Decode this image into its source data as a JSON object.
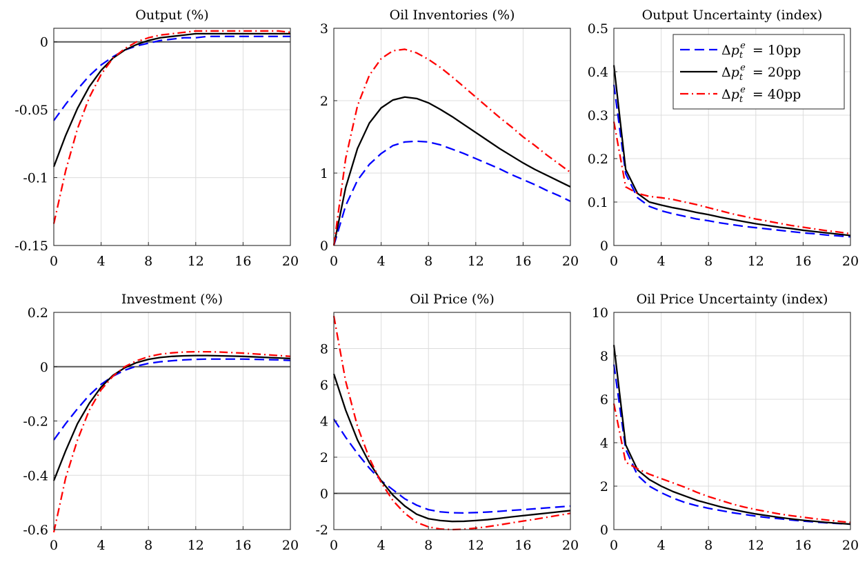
{
  "figure": {
    "legend": {
      "placement": "top-right",
      "panel_index": 2,
      "entries": [
        {
          "series": "10pp",
          "label": "Δp_t^e = 10pp"
        },
        {
          "series": "20pp",
          "label": "Δp_t^e = 20pp"
        },
        {
          "series": "40pp",
          "label": "Δp_t^e = 40pp"
        }
      ]
    },
    "series_styles": {
      "10pp": {
        "color": "#0000ff",
        "dash": "dashed"
      },
      "20pp": {
        "color": "#000000",
        "dash": "solid"
      },
      "40pp": {
        "color": "#ff0000",
        "dash": "dashdot"
      }
    },
    "zero_line_color": "#555555"
  },
  "chart_data": [
    {
      "type": "line",
      "title": "Output (%)",
      "xlim": [
        0,
        20
      ],
      "ylim": [
        -0.15,
        0.01
      ],
      "xticks": [
        0,
        4,
        8,
        12,
        16,
        20
      ],
      "yticks": [
        -0.15,
        -0.1,
        -0.05,
        0
      ],
      "ytick_labels": [
        "-0.15",
        "-0.1",
        "-0.05",
        "0"
      ],
      "zero_line": true,
      "grid": true,
      "x": [
        0,
        1,
        2,
        3,
        4,
        5,
        6,
        7,
        8,
        9,
        10,
        11,
        12,
        13,
        14,
        15,
        16,
        17,
        18,
        19,
        20
      ],
      "series": [
        {
          "key": "10pp",
          "values": [
            -0.058,
            -0.046,
            -0.035,
            -0.025,
            -0.017,
            -0.011,
            -0.006,
            -0.003,
            -0.001,
            0.001,
            0.002,
            0.003,
            0.003,
            0.004,
            0.004,
            0.004,
            0.004,
            0.004,
            0.004,
            0.004,
            0.004
          ]
        },
        {
          "key": "20pp",
          "values": [
            -0.092,
            -0.069,
            -0.049,
            -0.033,
            -0.021,
            -0.012,
            -0.006,
            -0.002,
            0.001,
            0.003,
            0.004,
            0.005,
            0.006,
            0.006,
            0.006,
            0.006,
            0.006,
            0.006,
            0.006,
            0.006,
            0.006
          ]
        },
        {
          "key": "40pp",
          "values": [
            -0.134,
            -0.095,
            -0.064,
            -0.041,
            -0.024,
            -0.012,
            -0.005,
            0.0,
            0.003,
            0.005,
            0.006,
            0.007,
            0.008,
            0.008,
            0.008,
            0.008,
            0.008,
            0.008,
            0.008,
            0.008,
            0.007
          ]
        }
      ]
    },
    {
      "type": "line",
      "title": "Oil Inventories (%)",
      "xlim": [
        0,
        20
      ],
      "ylim": [
        0,
        3
      ],
      "xticks": [
        0,
        4,
        8,
        12,
        16,
        20
      ],
      "yticks": [
        0,
        1,
        2,
        3
      ],
      "ytick_labels": [
        "0",
        "1",
        "2",
        "3"
      ],
      "zero_line": false,
      "grid": true,
      "x": [
        0,
        1,
        2,
        3,
        4,
        5,
        6,
        7,
        8,
        9,
        10,
        11,
        12,
        13,
        14,
        15,
        16,
        17,
        18,
        19,
        20
      ],
      "series": [
        {
          "key": "10pp",
          "values": [
            0,
            0.55,
            0.9,
            1.12,
            1.27,
            1.38,
            1.43,
            1.44,
            1.43,
            1.39,
            1.33,
            1.27,
            1.2,
            1.13,
            1.06,
            0.98,
            0.91,
            0.84,
            0.76,
            0.69,
            0.61
          ]
        },
        {
          "key": "20pp",
          "values": [
            0,
            0.8,
            1.34,
            1.69,
            1.9,
            2.01,
            2.05,
            2.03,
            1.97,
            1.88,
            1.78,
            1.67,
            1.56,
            1.45,
            1.34,
            1.24,
            1.14,
            1.05,
            0.97,
            0.89,
            0.81
          ]
        },
        {
          "key": "40pp",
          "values": [
            0,
            1.2,
            1.93,
            2.35,
            2.58,
            2.69,
            2.71,
            2.66,
            2.57,
            2.46,
            2.33,
            2.19,
            2.05,
            1.91,
            1.77,
            1.64,
            1.5,
            1.38,
            1.25,
            1.13,
            1.01
          ]
        }
      ]
    },
    {
      "type": "line",
      "title": "Output Uncertainty (index)",
      "xlim": [
        0,
        20
      ],
      "ylim": [
        0,
        0.5
      ],
      "xticks": [
        0,
        4,
        8,
        12,
        16,
        20
      ],
      "yticks": [
        0,
        0.1,
        0.2,
        0.3,
        0.4,
        0.5
      ],
      "ytick_labels": [
        "0",
        "0.1",
        "0.2",
        "0.3",
        "0.4",
        "0.5"
      ],
      "zero_line": false,
      "grid": true,
      "x": [
        0,
        1,
        2,
        3,
        4,
        5,
        6,
        7,
        8,
        9,
        10,
        11,
        12,
        13,
        14,
        15,
        16,
        17,
        18,
        19,
        20
      ],
      "series": [
        {
          "key": "10pp",
          "values": [
            0.37,
            0.165,
            0.11,
            0.09,
            0.08,
            0.073,
            0.067,
            0.061,
            0.057,
            0.052,
            0.048,
            0.044,
            0.041,
            0.038,
            0.035,
            0.032,
            0.029,
            0.027,
            0.024,
            0.022,
            0.02
          ]
        },
        {
          "key": "20pp",
          "values": [
            0.415,
            0.175,
            0.12,
            0.1,
            0.093,
            0.087,
            0.082,
            0.076,
            0.071,
            0.065,
            0.06,
            0.055,
            0.05,
            0.046,
            0.042,
            0.039,
            0.035,
            0.032,
            0.029,
            0.026,
            0.023
          ]
        },
        {
          "key": "40pp",
          "values": [
            0.285,
            0.135,
            0.12,
            0.113,
            0.11,
            0.106,
            0.1,
            0.094,
            0.087,
            0.08,
            0.073,
            0.067,
            0.061,
            0.056,
            0.051,
            0.046,
            0.042,
            0.038,
            0.034,
            0.031,
            0.027
          ]
        }
      ]
    },
    {
      "type": "line",
      "title": "Investment (%)",
      "xlim": [
        0,
        20
      ],
      "ylim": [
        -0.6,
        0.2
      ],
      "xticks": [
        0,
        4,
        8,
        12,
        16,
        20
      ],
      "yticks": [
        -0.6,
        -0.4,
        -0.2,
        0,
        0.2
      ],
      "ytick_labels": [
        "-0.6",
        "-0.4",
        "-0.2",
        "0",
        "0.2"
      ],
      "zero_line": true,
      "grid": true,
      "x": [
        0,
        1,
        2,
        3,
        4,
        5,
        6,
        7,
        8,
        9,
        10,
        11,
        12,
        13,
        14,
        15,
        16,
        17,
        18,
        19,
        20
      ],
      "series": [
        {
          "key": "10pp",
          "values": [
            -0.27,
            -0.21,
            -0.155,
            -0.105,
            -0.065,
            -0.035,
            -0.013,
            0.002,
            0.012,
            0.018,
            0.022,
            0.025,
            0.027,
            0.028,
            0.028,
            0.028,
            0.028,
            0.027,
            0.026,
            0.025,
            0.023
          ]
        },
        {
          "key": "20pp",
          "values": [
            -0.42,
            -0.31,
            -0.21,
            -0.135,
            -0.075,
            -0.032,
            -0.004,
            0.015,
            0.027,
            0.034,
            0.038,
            0.04,
            0.041,
            0.041,
            0.04,
            0.039,
            0.038,
            0.036,
            0.034,
            0.032,
            0.03
          ]
        },
        {
          "key": "40pp",
          "values": [
            -0.61,
            -0.41,
            -0.27,
            -0.16,
            -0.085,
            -0.035,
            0.0,
            0.022,
            0.037,
            0.046,
            0.051,
            0.054,
            0.055,
            0.055,
            0.054,
            0.052,
            0.05,
            0.047,
            0.044,
            0.041,
            0.038
          ]
        }
      ]
    },
    {
      "type": "line",
      "title": "Oil Price (%)",
      "xlim": [
        0,
        20
      ],
      "ylim": [
        -2,
        10
      ],
      "xticks": [
        0,
        4,
        8,
        12,
        16,
        20
      ],
      "yticks": [
        -2,
        0,
        2,
        4,
        6,
        8
      ],
      "ytick_labels": [
        "-2",
        "0",
        "2",
        "4",
        "6",
        "8"
      ],
      "zero_line": true,
      "grid": true,
      "x": [
        0,
        1,
        2,
        3,
        4,
        5,
        6,
        7,
        8,
        9,
        10,
        11,
        12,
        13,
        14,
        15,
        16,
        17,
        18,
        19,
        20
      ],
      "series": [
        {
          "key": "10pp",
          "values": [
            4.1,
            3.1,
            2.2,
            1.4,
            0.7,
            0.2,
            -0.3,
            -0.65,
            -0.9,
            -1.02,
            -1.07,
            -1.08,
            -1.06,
            -1.03,
            -0.99,
            -0.94,
            -0.9,
            -0.85,
            -0.8,
            -0.75,
            -0.7
          ]
        },
        {
          "key": "20pp",
          "values": [
            6.6,
            4.6,
            2.95,
            1.7,
            0.7,
            -0.1,
            -0.7,
            -1.15,
            -1.4,
            -1.5,
            -1.55,
            -1.54,
            -1.5,
            -1.45,
            -1.38,
            -1.3,
            -1.23,
            -1.16,
            -1.09,
            -1.02,
            -0.95
          ]
        },
        {
          "key": "40pp",
          "values": [
            9.8,
            6.2,
            3.7,
            1.95,
            0.6,
            -0.4,
            -1.1,
            -1.6,
            -1.85,
            -1.97,
            -2.0,
            -1.98,
            -1.92,
            -1.84,
            -1.74,
            -1.63,
            -1.53,
            -1.43,
            -1.32,
            -1.21,
            -1.1
          ]
        }
      ]
    },
    {
      "type": "line",
      "title": "Oil Price Uncertainty (index)",
      "xlim": [
        0,
        20
      ],
      "ylim": [
        0,
        10
      ],
      "xticks": [
        0,
        4,
        8,
        12,
        16,
        20
      ],
      "yticks": [
        0,
        2,
        4,
        6,
        8,
        10
      ],
      "ytick_labels": [
        "0",
        "2",
        "4",
        "6",
        "8",
        "10"
      ],
      "zero_line": false,
      "grid": true,
      "x": [
        0,
        1,
        2,
        3,
        4,
        5,
        6,
        7,
        8,
        9,
        10,
        11,
        12,
        13,
        14,
        15,
        16,
        17,
        18,
        19,
        20
      ],
      "series": [
        {
          "key": "10pp",
          "values": [
            7.6,
            3.7,
            2.5,
            2.0,
            1.7,
            1.45,
            1.25,
            1.1,
            0.98,
            0.88,
            0.78,
            0.7,
            0.62,
            0.55,
            0.5,
            0.44,
            0.39,
            0.35,
            0.31,
            0.28,
            0.25
          ]
        },
        {
          "key": "20pp",
          "values": [
            8.5,
            3.9,
            2.75,
            2.3,
            2.0,
            1.75,
            1.55,
            1.35,
            1.2,
            1.05,
            0.93,
            0.82,
            0.72,
            0.64,
            0.56,
            0.49,
            0.43,
            0.38,
            0.33,
            0.29,
            0.25
          ]
        },
        {
          "key": "40pp",
          "values": [
            5.8,
            3.1,
            2.8,
            2.55,
            2.35,
            2.15,
            1.95,
            1.72,
            1.52,
            1.35,
            1.18,
            1.04,
            0.92,
            0.82,
            0.72,
            0.64,
            0.57,
            0.5,
            0.44,
            0.38,
            0.33
          ]
        }
      ]
    }
  ]
}
